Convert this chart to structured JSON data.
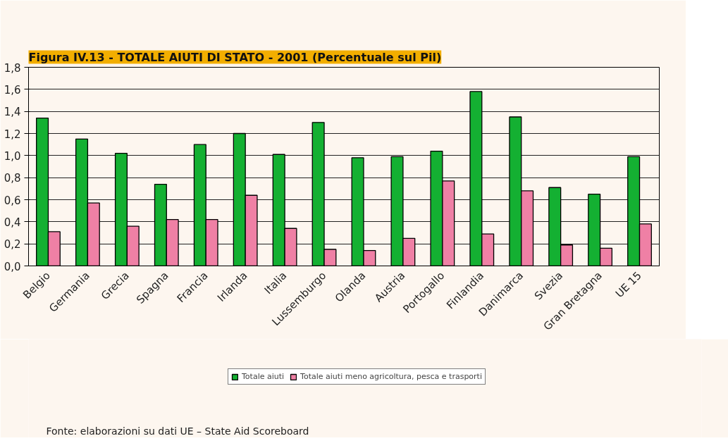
{
  "chart_data": {
    "type": "bar",
    "title": "Figura IV.13 - TOTALE AIUTI DI STATO - 2001 (Percentuale sul Pil)",
    "categories": [
      "Belgio",
      "Germania",
      "Grecia",
      "Spagna",
      "Francia",
      "Irlanda",
      "Italia",
      "Lussemburgo",
      "Olanda",
      "Austria",
      "Portogallo",
      "Finlandia",
      "Danimarca",
      "Svezia",
      "Gran Bretagna",
      "UE 15"
    ],
    "series": [
      {
        "name": "Totale aiuti",
        "color": "#14b032",
        "values": [
          1.34,
          1.15,
          1.02,
          0.74,
          1.1,
          1.2,
          1.01,
          1.3,
          0.98,
          0.99,
          1.04,
          1.58,
          1.35,
          0.71,
          0.65,
          0.99
        ]
      },
      {
        "name": "Totale aiuti meno agricoltura, pesca e trasporti",
        "color": "#ef80a5",
        "values": [
          0.31,
          0.57,
          0.36,
          0.42,
          0.42,
          0.64,
          0.34,
          0.15,
          0.14,
          0.25,
          0.77,
          0.29,
          0.68,
          0.19,
          0.16,
          0.38
        ]
      }
    ],
    "ylim": [
      0,
      1.8
    ],
    "yticks": [
      {
        "value": 0,
        "label": "0,0"
      },
      {
        "value": 0.2,
        "label": "0,2"
      },
      {
        "value": 0.4,
        "label": "0,4"
      },
      {
        "value": 0.6,
        "label": "0,6"
      },
      {
        "value": 0.8,
        "label": "0,8"
      },
      {
        "value": 1.0,
        "label": "1,0"
      },
      {
        "value": 1.2,
        "label": "1,2"
      },
      {
        "value": 1.4,
        "label": "1,4"
      },
      {
        "value": 1.6,
        "label": "1,6"
      },
      {
        "value": 1.8,
        "label": "1,8"
      }
    ],
    "grid": "y",
    "legend": "bottom",
    "annotations": [
      "Fonte: elaborazioni su dati UE – State Aid Scoreboard"
    ]
  }
}
